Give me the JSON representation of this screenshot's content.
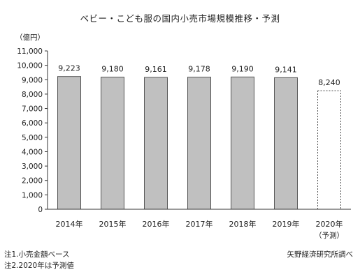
{
  "chart_data": {
    "type": "bar",
    "title": "ベビー・こども服の国内小売市場規模推移・予測",
    "y_unit": "（億円）",
    "ylim": [
      0,
      11000
    ],
    "y_ticks": [
      0,
      1000,
      2000,
      3000,
      4000,
      5000,
      6000,
      7000,
      8000,
      9000,
      10000,
      11000
    ],
    "y_tick_labels": [
      "0",
      "1,000",
      "2,000",
      "3,000",
      "4,000",
      "5,000",
      "6,000",
      "7,000",
      "8,000",
      "9,000",
      "10,000",
      "11,000"
    ],
    "categories": [
      "2014年",
      "2015年",
      "2016年",
      "2017年",
      "2018年",
      "2019年",
      "2020年"
    ],
    "category_sublabels": [
      "",
      "",
      "",
      "",
      "",
      "",
      "（予測）"
    ],
    "values": [
      9223,
      9180,
      9161,
      9178,
      9190,
      9141,
      8240
    ],
    "value_labels": [
      "9,223",
      "9,180",
      "9,161",
      "9,178",
      "9,190",
      "9,141",
      "8,240"
    ],
    "forecast": [
      false,
      false,
      false,
      false,
      false,
      false,
      true
    ],
    "grid": false,
    "legend": "none"
  },
  "notes": [
    "注1.小売金額ベース",
    "注2.2020年は予測値"
  ],
  "source": "矢野経済研究所調べ",
  "colors": {
    "bar_fill": "#c0c0c0",
    "bar_stroke": "#555555",
    "forecast_fill": "#ffffff",
    "axis": "#333333"
  }
}
